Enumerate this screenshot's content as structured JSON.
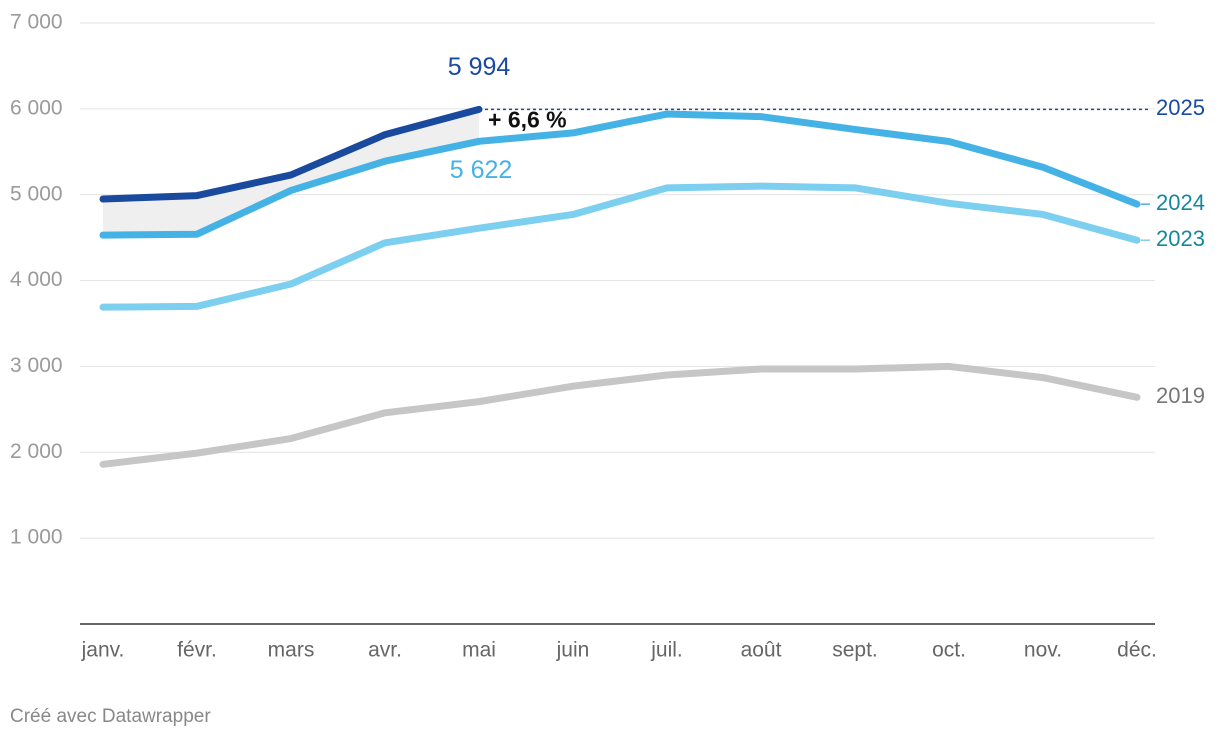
{
  "chart_data": {
    "type": "line",
    "categories": [
      "janv.",
      "févr.",
      "mars",
      "avr.",
      "mai",
      "juin",
      "juil.",
      "août",
      "sept.",
      "oct.",
      "nov.",
      "déc."
    ],
    "series": [
      {
        "name": "2025",
        "color": "#1a4a9e",
        "values": [
          4950,
          4990,
          5230,
          5700,
          5994,
          null,
          null,
          null,
          null,
          null,
          null,
          null
        ]
      },
      {
        "name": "2024",
        "color": "#45b2e6",
        "values": [
          4530,
          4540,
          5050,
          5390,
          5622,
          5720,
          5940,
          5910,
          5760,
          5620,
          5320,
          4890
        ]
      },
      {
        "name": "2023",
        "color": "#7ccfee",
        "values": [
          3690,
          3700,
          3960,
          4440,
          4610,
          4770,
          5080,
          5100,
          5080,
          4900,
          4770,
          4470
        ]
      },
      {
        "name": "2019",
        "color": "#c6c6c6",
        "values": [
          1860,
          1990,
          2160,
          2460,
          2590,
          2770,
          2900,
          2970,
          2970,
          3000,
          2870,
          2640
        ]
      }
    ],
    "ylim": [
      0,
      7000
    ],
    "yticks": [
      {
        "value": 1000,
        "label": "1 000"
      },
      {
        "value": 2000,
        "label": "2 000"
      },
      {
        "value": 3000,
        "label": "3 000"
      },
      {
        "value": 4000,
        "label": "4 000"
      },
      {
        "value": 5000,
        "label": "5 000"
      },
      {
        "value": 6000,
        "label": "6 000"
      },
      {
        "value": 7000,
        "label": "7 000"
      }
    ],
    "grid": true,
    "annotations": [
      "5 994",
      "5 622",
      "+ 6,6 %"
    ],
    "source": "Créé avec Datawrapper"
  }
}
